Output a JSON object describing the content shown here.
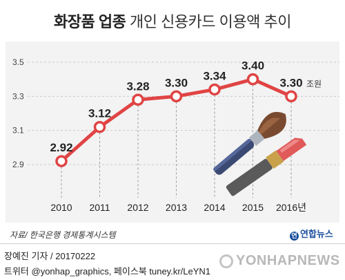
{
  "title": {
    "bold": "화장품 업종",
    "rest": "개인 신용카드 이용액 추이"
  },
  "chart_data": {
    "type": "line",
    "categories": [
      "2010",
      "2011",
      "2012",
      "2013",
      "2014",
      "2015",
      "2016년"
    ],
    "values": [
      2.92,
      3.12,
      3.28,
      3.3,
      3.34,
      3.4,
      3.3
    ],
    "data_labels": [
      "2.92",
      "3.12",
      "3.28",
      "3.30",
      "3.34",
      "3.40",
      "3.30"
    ],
    "unit": "조원",
    "yticks": [
      "2.9",
      "3.1",
      "3.3",
      "3.5"
    ],
    "ytick_values": [
      2.9,
      3.1,
      3.3,
      3.5
    ],
    "ylim": [
      2.9,
      3.5
    ],
    "grid": true,
    "line_color": "#e04444"
  },
  "source": "자료/ 한국은행 경제통계시스템",
  "logo": {
    "mark": "연",
    "text": "연합뉴스"
  },
  "credit_line1": "장예진 기자 / 20170222",
  "credit_line2": "트위터 @yonhap_graphics, 페이스북 tuney.kr/LeYN1",
  "watermark": "YONHAPNEWS"
}
